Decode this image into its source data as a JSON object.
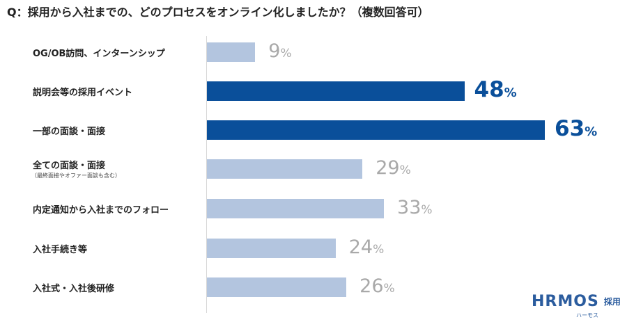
{
  "chart_data": {
    "type": "bar",
    "orientation": "horizontal",
    "title": "Q：採用から入社までの、どのプロセスをオンライン化しましたか？（複数回答可）",
    "categories": [
      "OG/OB訪問、インターンシップ",
      "説明会等の採用イベント",
      "一部の面談・面接",
      "全ての面談・面接",
      "内定通知から入社までのフォロー",
      "入社手続き等",
      "入社式・入社後研修"
    ],
    "category_notes": [
      "",
      "",
      "",
      "（最終面接やオファー面談も含む）",
      "",
      "",
      ""
    ],
    "values": [
      9,
      48,
      63,
      29,
      33,
      24,
      26
    ],
    "value_suffix": "%",
    "xlim": [
      0,
      63
    ],
    "highlighted": [
      false,
      true,
      true,
      false,
      false,
      false,
      false
    ],
    "colors": {
      "bar": "#b3c5df",
      "bar_highlight": "#0a4f9a",
      "label": "#a9a9a9",
      "label_highlight": "#0a4f9a"
    }
  },
  "logo": {
    "text": "HRMOS",
    "suffix": "採用",
    "kana": "ハーモス"
  }
}
